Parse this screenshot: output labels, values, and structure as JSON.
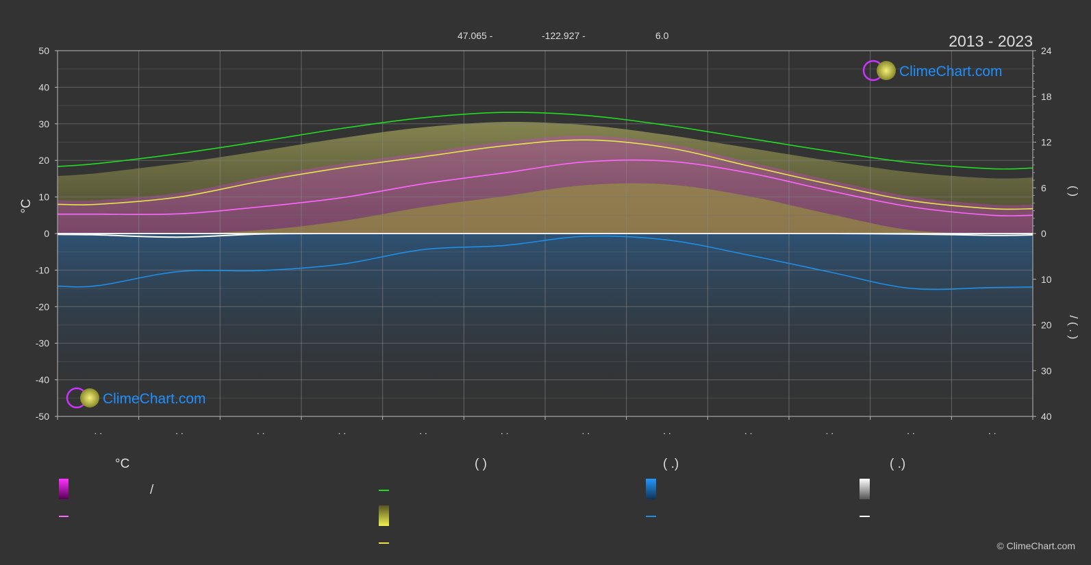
{
  "header": {
    "latitude": "47.065 -",
    "longitude": "-122.927 -",
    "elevation": "6.0",
    "period": "2013 - 2023"
  },
  "branding": {
    "logo_text": "ClimeChart.com",
    "copyright": "© ClimeChart.com"
  },
  "legend": {
    "col1_header": "°C",
    "col2_header": "(          )",
    "col3_header": "(   .)",
    "col4_header": "(   .)",
    "col1_slash": "/"
  },
  "colors": {
    "background": "#333333",
    "daylight": "#22dd22",
    "sunshine": "#e6e64a",
    "max_temp": "#ff66ff",
    "temp_band": "#cc33cc",
    "precip": "#1e8fe6",
    "snow": "#ffffff",
    "logo": "#1e90ff"
  },
  "chart_data": {
    "type": "line",
    "months": 12,
    "month_tick_labels": [
      ". .",
      ". .",
      ". .",
      ". .",
      ". .",
      ". .",
      ". .",
      ". .",
      ". .",
      ". .",
      ". .",
      ". ."
    ],
    "left_axis": {
      "label": "°C",
      "range": [
        -50,
        50
      ],
      "ticks": [
        50,
        40,
        30,
        20,
        10,
        0,
        -10,
        -20,
        -30,
        -40,
        -50
      ]
    },
    "right_axis_top": {
      "label": "(   )",
      "range": [
        0,
        24
      ],
      "ticks": [
        24,
        18,
        12,
        6,
        0
      ]
    },
    "right_axis_bottom": {
      "label": "/ (  .  )",
      "range": [
        0,
        40
      ],
      "ticks": [
        0,
        10,
        20,
        30,
        40
      ]
    },
    "series": [
      {
        "color_key": "daylight",
        "axis": "hours",
        "x": [
          0,
          0.5,
          1.5,
          2.5,
          3.5,
          4.5,
          5.5,
          6.5,
          7.5,
          8.5,
          9.5,
          10.5,
          11.5,
          12
        ],
        "values": [
          8.8,
          9.2,
          10.5,
          12.1,
          13.8,
          15.2,
          15.9,
          15.5,
          14.2,
          12.5,
          10.8,
          9.3,
          8.5,
          8.6
        ]
      },
      {
        "color_key": "sunshine",
        "axis": "temp",
        "x": [
          0,
          0.5,
          1.5,
          2.5,
          3.5,
          4.5,
          5.5,
          6.5,
          7.5,
          8.5,
          9.5,
          10.5,
          11.5,
          12
        ],
        "values": [
          8,
          8,
          10,
          14.3,
          18,
          21,
          24,
          25.6,
          23.5,
          18.5,
          13.5,
          9,
          6.8,
          6.8
        ]
      },
      {
        "color_key": "max_temp",
        "axis": "temp",
        "x": [
          0,
          0.5,
          1.5,
          2.5,
          3.5,
          4.5,
          5.5,
          6.5,
          7.5,
          8.5,
          9.5,
          10.5,
          11.5,
          12
        ],
        "values": [
          5.3,
          5.3,
          5.4,
          7.3,
          9.8,
          13.6,
          16.6,
          19.6,
          19.8,
          16.6,
          11.7,
          7.3,
          5,
          5
        ]
      },
      {
        "color_key": "precip",
        "axis": "precip",
        "x": [
          0,
          0.5,
          1.5,
          2.5,
          3.5,
          4.5,
          5.5,
          6.5,
          7.5,
          8.5,
          9.5,
          10.5,
          11.5,
          12
        ],
        "values": [
          11.5,
          11.4,
          8.3,
          8.1,
          6.7,
          3.5,
          2.6,
          0.6,
          1.4,
          4.7,
          8.4,
          12,
          11.8,
          11.7
        ]
      },
      {
        "color_key": "snow",
        "axis": "precip",
        "x": [
          0,
          0.5,
          1.5,
          2.5,
          3.5,
          4.5,
          5.5,
          6.5,
          7.5,
          8.5,
          9.5,
          10.5,
          11.5,
          12
        ],
        "values": [
          0.2,
          0.3,
          0.8,
          0.1,
          0,
          0,
          0,
          0,
          0,
          0,
          0,
          0.1,
          0.4,
          0.3
        ]
      }
    ]
  }
}
